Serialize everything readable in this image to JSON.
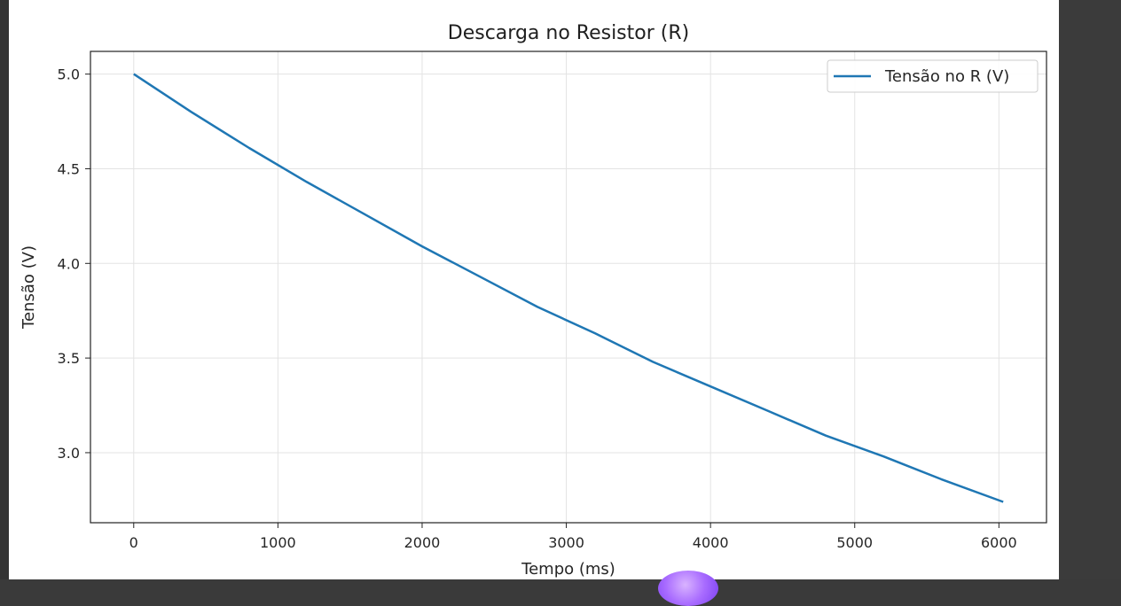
{
  "chart_data": {
    "type": "line",
    "title": "Descarga no Resistor (R)",
    "xlabel": "Tempo (ms)",
    "ylabel": "Tensão (V)",
    "xlim": [
      -300,
      6330
    ],
    "ylim": [
      2.63,
      5.12
    ],
    "xticks": [
      0,
      1000,
      2000,
      3000,
      4000,
      5000,
      6000
    ],
    "xtick_labels": [
      "0",
      "1000",
      "2000",
      "3000",
      "4000",
      "5000",
      "6000"
    ],
    "yticks": [
      3.0,
      3.5,
      4.0,
      4.5,
      5.0
    ],
    "ytick_labels": [
      "3.0",
      "3.5",
      "4.0",
      "4.5",
      "5.0"
    ],
    "grid": true,
    "legend_position": "top-right",
    "series": [
      {
        "name": "Tensão no R (V)",
        "color": "#1f77b4",
        "x": [
          0,
          400,
          800,
          1200,
          1600,
          2000,
          2400,
          2800,
          3200,
          3600,
          4000,
          4400,
          4800,
          5200,
          5600,
          6030
        ],
        "y": [
          5.0,
          4.8,
          4.61,
          4.43,
          4.26,
          4.09,
          3.93,
          3.77,
          3.63,
          3.48,
          3.35,
          3.22,
          3.09,
          2.98,
          2.86,
          2.74
        ]
      }
    ]
  }
}
